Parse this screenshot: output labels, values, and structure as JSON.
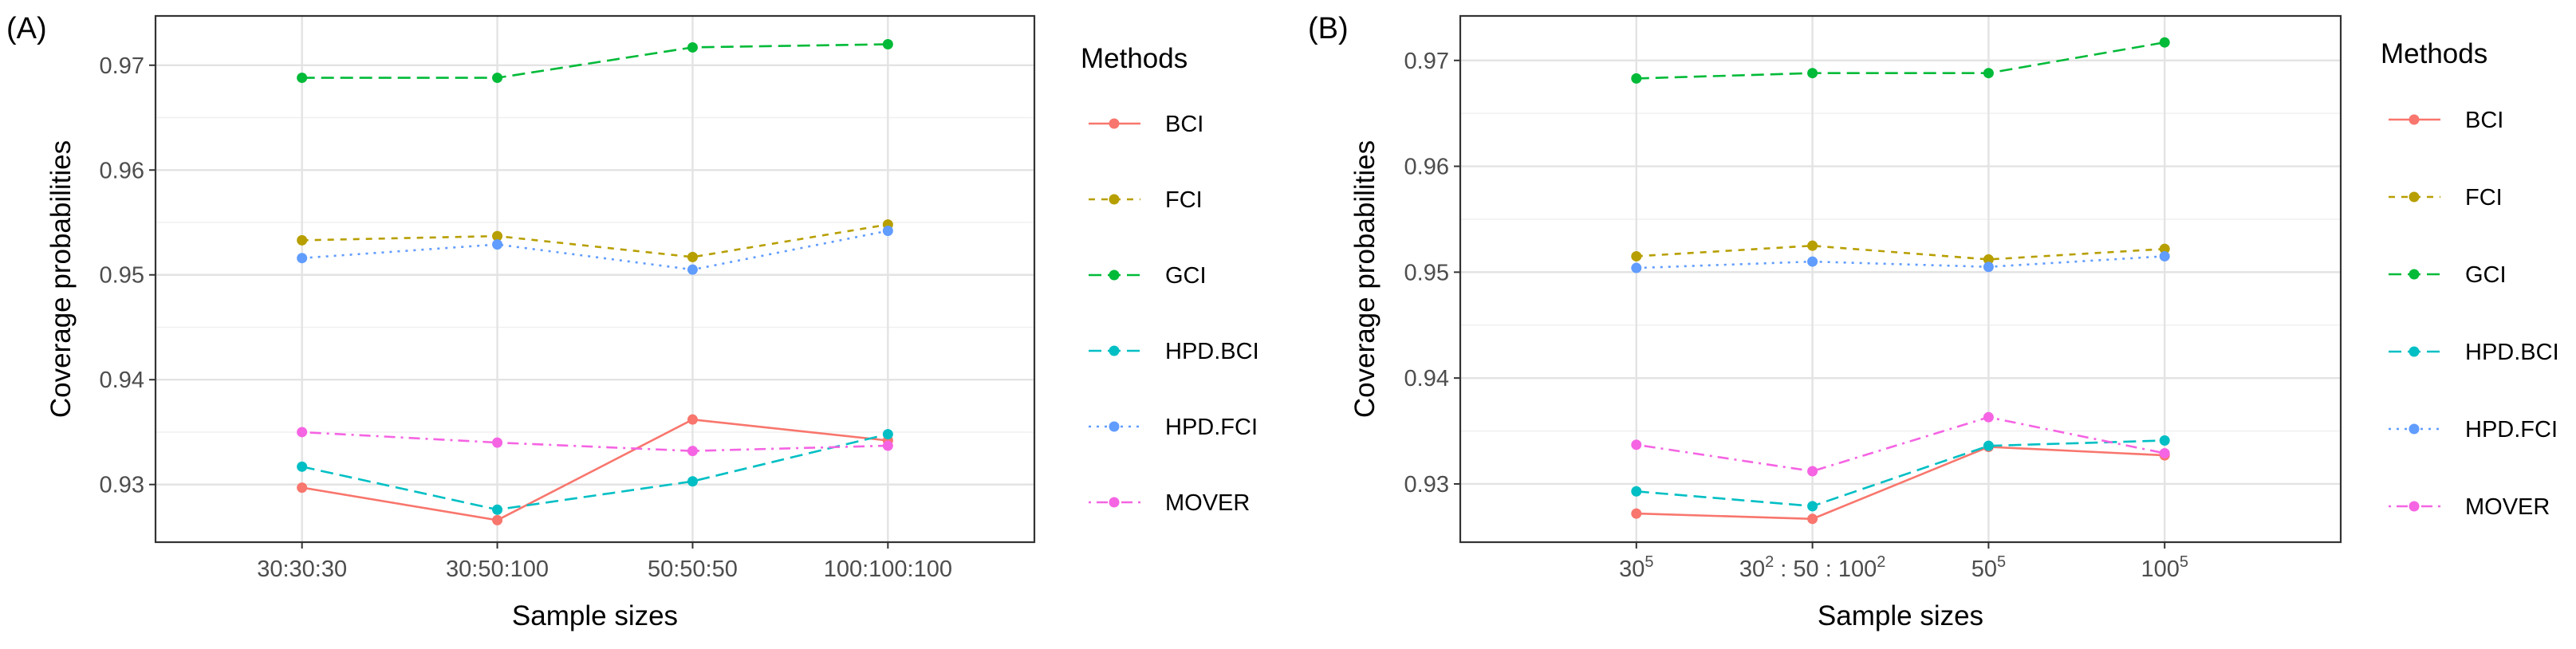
{
  "chart_data": [
    {
      "type": "line",
      "panel_label": "(A)",
      "xlabel": "Sample sizes",
      "ylabel": "Coverage probabilities",
      "categories": [
        {
          "text": "30:30:30"
        },
        {
          "text": "30:50:100"
        },
        {
          "text": "50:50:50"
        },
        {
          "text": "100:100:100"
        }
      ],
      "ylim": [
        0.9245,
        0.9747
      ],
      "yticks": [
        0.93,
        0.94,
        0.95,
        0.96,
        0.97
      ],
      "ytick_labels": [
        "0.93",
        "0.94",
        "0.95",
        "0.96",
        "0.97"
      ],
      "grid": true,
      "legend_title": "Methods",
      "legend_position": "right",
      "series": [
        {
          "name": "BCI",
          "color": "#F8766D",
          "dash": "solid",
          "values": [
            0.9297,
            0.9266,
            0.9362,
            0.9342
          ]
        },
        {
          "name": "FCI",
          "color": "#B79F00",
          "dash": "dashed",
          "values": [
            0.9533,
            0.9537,
            0.9517,
            0.9548
          ]
        },
        {
          "name": "GCI",
          "color": "#00BA38",
          "dash": "longdash",
          "values": [
            0.9688,
            0.9688,
            0.9717,
            0.972
          ]
        },
        {
          "name": "HPD.BCI",
          "color": "#00BFC4",
          "dash": "longdash",
          "values": [
            0.9317,
            0.9276,
            0.9303,
            0.9348
          ]
        },
        {
          "name": "HPD.FCI",
          "color": "#619CFF",
          "dash": "dotted",
          "values": [
            0.9516,
            0.9529,
            0.9505,
            0.9542
          ]
        },
        {
          "name": "MOVER",
          "color": "#F564E3",
          "dash": "dotdash",
          "values": [
            0.935,
            0.934,
            0.9332,
            0.9337
          ]
        }
      ]
    },
    {
      "type": "line",
      "panel_label": "(B)",
      "xlabel": "Sample sizes",
      "ylabel": "Coverage probabilities",
      "categories": [
        {
          "text": "30",
          "sup": "5"
        },
        {
          "text": "30",
          "sup": "2",
          "text2": " : 50 : 100",
          "sup2": "2"
        },
        {
          "text": "50",
          "sup": "5"
        },
        {
          "text": "100",
          "sup": "5"
        }
      ],
      "ylim": [
        0.9245,
        0.9742
      ],
      "yticks": [
        0.93,
        0.94,
        0.95,
        0.96,
        0.97
      ],
      "ytick_labels": [
        "0.93",
        "0.94",
        "0.95",
        "0.96",
        "0.97"
      ],
      "grid": true,
      "legend_title": "Methods",
      "legend_position": "right",
      "series": [
        {
          "name": "BCI",
          "color": "#F8766D",
          "dash": "solid",
          "values": [
            0.9272,
            0.9267,
            0.9335,
            0.9327
          ]
        },
        {
          "name": "FCI",
          "color": "#B79F00",
          "dash": "dashed",
          "values": [
            0.9515,
            0.9525,
            0.9512,
            0.9522
          ]
        },
        {
          "name": "GCI",
          "color": "#00BA38",
          "dash": "longdash",
          "values": [
            0.9683,
            0.9688,
            0.9688,
            0.9717
          ]
        },
        {
          "name": "HPD.BCI",
          "color": "#00BFC4",
          "dash": "longdash",
          "values": [
            0.9293,
            0.9279,
            0.9336,
            0.9341
          ]
        },
        {
          "name": "HPD.FCI",
          "color": "#619CFF",
          "dash": "dotted",
          "values": [
            0.9504,
            0.951,
            0.9505,
            0.9515
          ]
        },
        {
          "name": "MOVER",
          "color": "#F564E3",
          "dash": "dotdash",
          "values": [
            0.9337,
            0.9312,
            0.9363,
            0.9329
          ]
        }
      ]
    }
  ]
}
